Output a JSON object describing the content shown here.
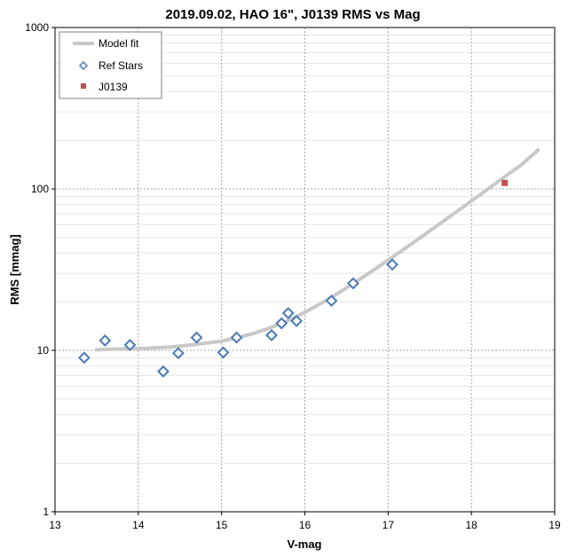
{
  "chart_data": {
    "type": "scatter",
    "title": "2019.09.02, HAO 16\", J0139 RMS vs Mag",
    "xlabel": "V-mag",
    "ylabel": "RMS [mmag]",
    "xlim": [
      13,
      19
    ],
    "ylim": [
      1,
      1000
    ],
    "y_scale": "log",
    "x_ticks": [
      "13",
      "14",
      "15",
      "16",
      "17",
      "18",
      "19"
    ],
    "y_ticks": [
      "1",
      "10",
      "100",
      "1000"
    ],
    "grid": true,
    "legend_position": "top-left",
    "series": [
      {
        "name": "Model fit",
        "type": "line",
        "color": "#c8c8c8",
        "x": [
          13.5,
          13.8,
          14.1,
          14.4,
          14.7,
          15.0,
          15.2,
          15.4,
          15.6,
          15.8,
          16.0,
          16.2,
          16.4,
          16.6,
          16.8,
          17.0,
          17.2,
          17.4,
          17.6,
          17.8,
          18.0,
          18.2,
          18.4,
          18.6,
          18.8
        ],
        "y": [
          10.1,
          10.2,
          10.3,
          10.5,
          10.9,
          11.4,
          12.0,
          12.8,
          13.9,
          15.3,
          17.2,
          19.6,
          22.6,
          26.3,
          30.8,
          36.2,
          42.7,
          50.5,
          59.8,
          70.9,
          84.2,
          100.0,
          119.0,
          141.0,
          174.0
        ]
      },
      {
        "name": "Ref Stars",
        "type": "scatter",
        "marker": "diamond-open",
        "color": "#4a7ab5",
        "x": [
          13.35,
          13.6,
          13.9,
          14.3,
          14.48,
          14.7,
          15.02,
          15.18,
          15.6,
          15.72,
          15.8,
          15.9,
          16.32,
          16.58,
          17.05
        ],
        "y": [
          9.0,
          11.5,
          10.8,
          7.4,
          9.6,
          12.0,
          9.7,
          12.0,
          12.4,
          14.7,
          17.0,
          15.2,
          20.3,
          26.0,
          34.0
        ]
      },
      {
        "name": "J0139",
        "type": "scatter",
        "marker": "square",
        "color": "#c0504d",
        "x": [
          18.4
        ],
        "y": [
          109.0
        ]
      }
    ]
  }
}
